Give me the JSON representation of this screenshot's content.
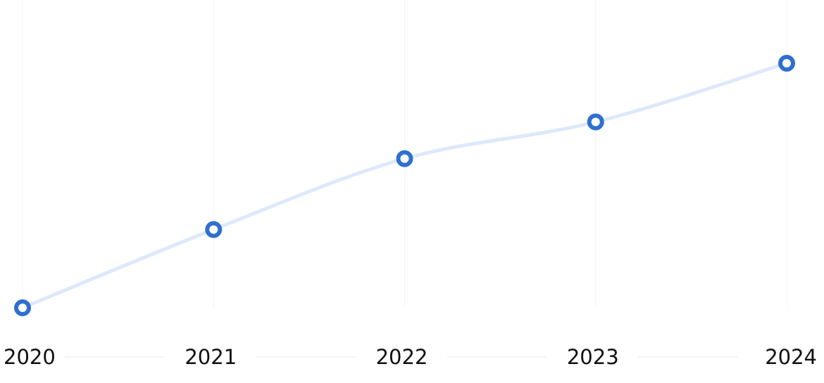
{
  "chart_data": {
    "type": "line",
    "categories": [
      "2020",
      "2021",
      "2022",
      "2023",
      "2024"
    ],
    "values": [
      0,
      32,
      61,
      76,
      100
    ],
    "ylim": [
      0,
      100
    ],
    "color": "#2f6fd0",
    "line_color": "#dde9fb"
  }
}
